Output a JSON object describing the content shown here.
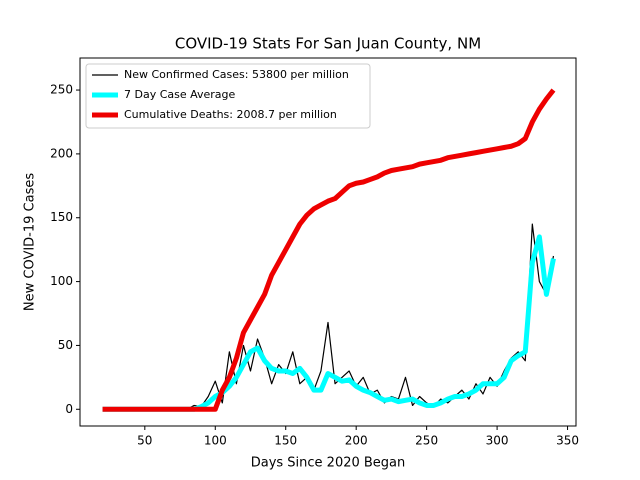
{
  "chart_data": {
    "type": "line",
    "title": "COVID-19 Stats For San Juan County, NM",
    "x_label": "Days Since 2020 Began",
    "y_label": "New COVID-19 Cases",
    "x": [
      20,
      25,
      30,
      35,
      40,
      45,
      50,
      55,
      60,
      65,
      70,
      75,
      80,
      85,
      90,
      95,
      100,
      105,
      110,
      115,
      120,
      125,
      130,
      135,
      140,
      145,
      150,
      155,
      160,
      165,
      170,
      175,
      180,
      185,
      190,
      195,
      200,
      205,
      210,
      215,
      220,
      225,
      230,
      235,
      240,
      245,
      250,
      255,
      260,
      265,
      270,
      275,
      280,
      285,
      290,
      295,
      300,
      305,
      310,
      315,
      320,
      325,
      330,
      335,
      340
    ],
    "series": [
      {
        "name": "New Confirmed Cases: 53800 per million",
        "color": "#000000",
        "width": 1.2,
        "values": [
          0,
          0,
          0,
          0,
          0,
          0,
          0,
          0,
          0,
          0,
          0,
          0,
          0,
          3,
          2,
          10,
          22,
          5,
          45,
          20,
          50,
          30,
          55,
          40,
          20,
          35,
          28,
          45,
          20,
          25,
          15,
          30,
          68,
          20,
          25,
          30,
          18,
          25,
          12,
          15,
          5,
          10,
          8,
          25,
          3,
          10,
          5,
          2,
          8,
          5,
          10,
          15,
          8,
          20,
          12,
          25,
          18,
          30,
          40,
          45,
          38,
          145,
          100,
          90,
          120
        ]
      },
      {
        "name": "7 Day Case Average",
        "color": "#00ffff",
        "width": 5,
        "values": [
          0,
          0,
          0,
          0,
          0,
          0,
          0,
          0,
          0,
          0,
          0,
          0,
          0,
          0,
          2,
          5,
          10,
          13,
          18,
          25,
          35,
          45,
          48,
          38,
          32,
          30,
          30,
          28,
          32,
          25,
          15,
          15,
          28,
          25,
          22,
          23,
          18,
          15,
          13,
          10,
          7,
          8,
          6,
          7,
          8,
          5,
          3,
          3,
          5,
          8,
          10,
          10,
          12,
          15,
          20,
          20,
          20,
          25,
          38,
          42,
          45,
          115,
          135,
          90,
          118
        ]
      },
      {
        "name": "Cumulative Deaths: 2008.7 per million",
        "color": "#ee0000",
        "width": 5,
        "values": [
          0,
          0,
          0,
          0,
          0,
          0,
          0,
          0,
          0,
          0,
          0,
          0,
          0,
          0,
          0,
          0,
          0,
          15,
          25,
          40,
          60,
          70,
          80,
          90,
          105,
          115,
          125,
          135,
          145,
          152,
          157,
          160,
          163,
          165,
          170,
          175,
          177,
          178,
          180,
          182,
          185,
          187,
          188,
          189,
          190,
          192,
          193,
          194,
          195,
          197,
          198,
          199,
          200,
          201,
          202,
          203,
          204,
          205,
          206,
          208,
          212,
          225,
          235,
          243,
          250
        ]
      }
    ],
    "xlim": [
      4,
      356
    ],
    "ylim": [
      -13.1,
      275.1
    ],
    "xticks": [
      50,
      100,
      150,
      200,
      250,
      300,
      350
    ],
    "yticks": [
      0,
      50,
      100,
      150,
      200,
      250
    ],
    "legend": "upper left"
  }
}
